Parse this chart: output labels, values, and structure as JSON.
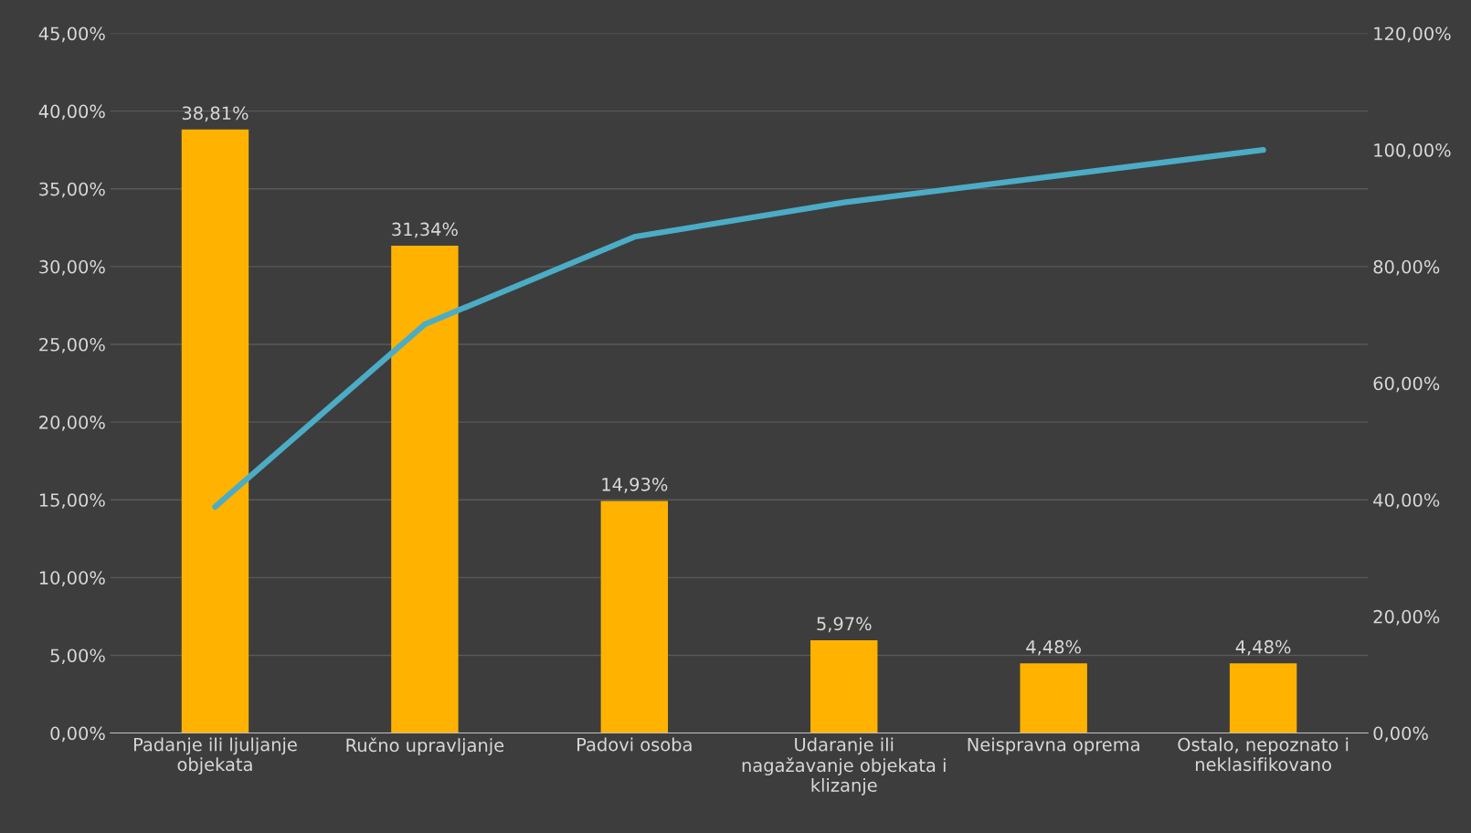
{
  "chart_data": {
    "type": "bar",
    "categories": [
      "Padanje ili ljuljanje\nobjekata",
      "Ručno upravljanje",
      "Padovi osoba",
      "Udaranje ili\nnagažavanje objekata i\nklizanje",
      "Neispravna oprema",
      "Ostalo, nepoznato i\nneklasifikovano"
    ],
    "series": [
      {
        "color": "#ffb300",
        "values": [
          38.81,
          31.34,
          14.93,
          5.97,
          4.48,
          4.48
        ],
        "value_labels": [
          "38,81%",
          "31,34%",
          "14,93%",
          "5,97%",
          "4,48%",
          "4,48%"
        ]
      },
      {
        "type": "line",
        "axis": "y2",
        "color": "#4bacc6",
        "values": [
          38.8,
          70.1,
          85.1,
          91.0,
          95.5,
          100.0
        ]
      }
    ],
    "ylim": [
      0,
      45
    ],
    "yticks": [
      {
        "value": 0,
        "label": "0,00%"
      },
      {
        "value": 5,
        "label": "5,00%"
      },
      {
        "value": 10,
        "label": "10,00%"
      },
      {
        "value": 15,
        "label": "15,00%"
      },
      {
        "value": 20,
        "label": "20,00%"
      },
      {
        "value": 25,
        "label": "25,00%"
      },
      {
        "value": 30,
        "label": "30,00%"
      },
      {
        "value": 35,
        "label": "35,00%"
      },
      {
        "value": 40,
        "label": "40,00%"
      },
      {
        "value": 45,
        "label": "45,00%"
      }
    ],
    "y2lim": [
      0,
      120
    ],
    "y2ticks": [
      {
        "value": 0,
        "label": "0,00%"
      },
      {
        "value": 20,
        "label": "20,00%"
      },
      {
        "value": 40,
        "label": "40,00%"
      },
      {
        "value": 60,
        "label": "60,00%"
      },
      {
        "value": 80,
        "label": "80,00%"
      },
      {
        "value": 100,
        "label": "100,00%"
      },
      {
        "value": 120,
        "label": "120,00%"
      }
    ],
    "grid": "y",
    "marker": "none",
    "line_style": "solid"
  }
}
